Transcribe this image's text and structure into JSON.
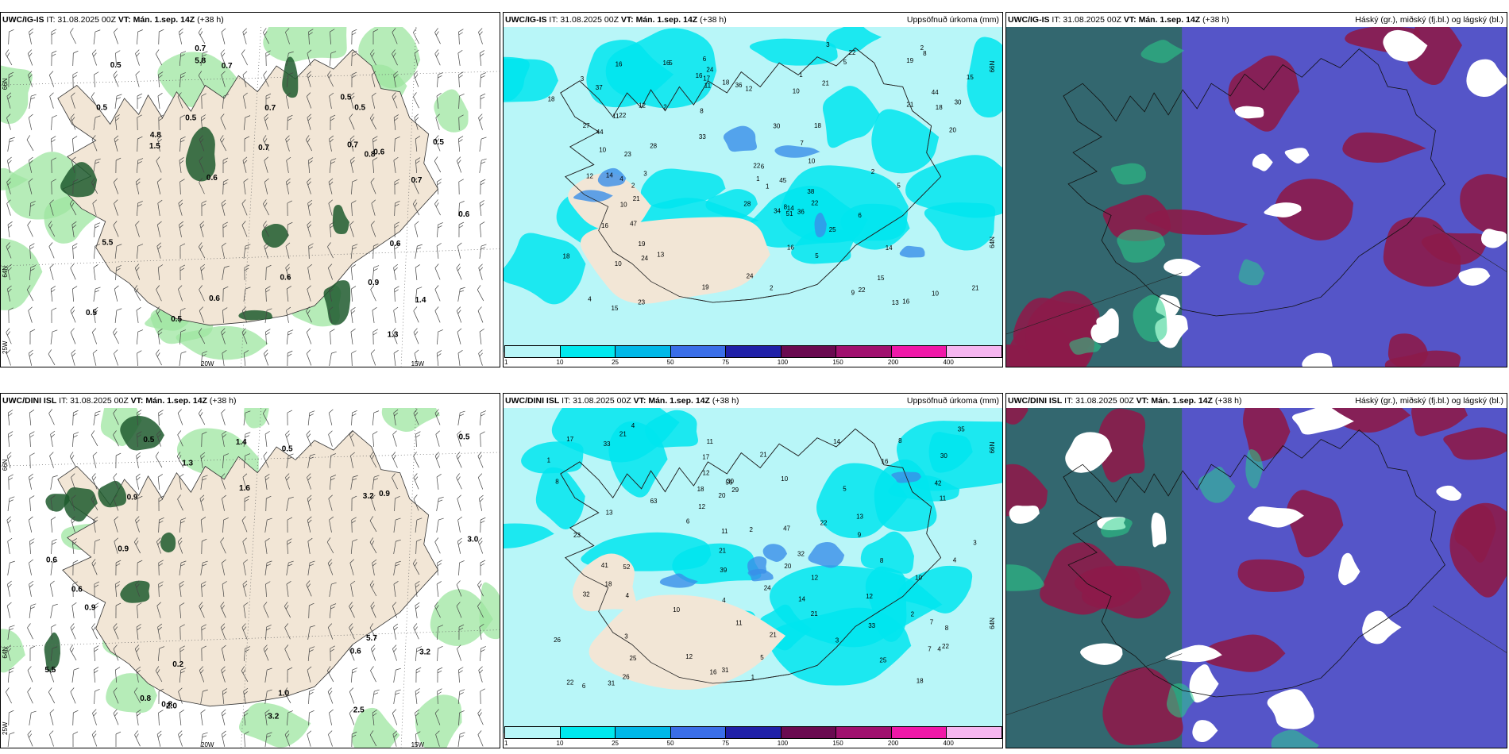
{
  "panels": [
    {
      "id": "wind-top",
      "model": "UWC/IG-IS",
      "run_prefix": "IT: 31.08.2025 00Z",
      "vt_label": "VT:",
      "vt": "Mán. 1.sep. 14Z",
      "lead": "(+38 h)",
      "right_title": "",
      "axis_labels": [
        "20W",
        "15W",
        "66N",
        "64N",
        "25W"
      ],
      "values": [
        "0.7",
        "0.7",
        "0.6",
        "0.5",
        "5.8",
        "4.8",
        "5.5",
        "0.7",
        "0.5",
        "0.5",
        "0.5",
        "0.6",
        "0.5",
        "0.6",
        "0.5",
        "0.7",
        "0.6",
        "0.8",
        "0.9",
        "0.5",
        "0.7",
        "0.5",
        "1.4",
        "1.3",
        "1.5",
        "0.6",
        "0.7",
        "0.6"
      ]
    },
    {
      "id": "precip-top",
      "model": "UWC/IG-IS",
      "run_prefix": "IT: 31.08.2025 00Z",
      "vt_label": "VT:",
      "vt": "Mán. 1.sep. 14Z",
      "lead": "(+38 h)",
      "right_title": "Uppsöfnuð úrkoma (mm)",
      "axis_labels": [
        "66N",
        "64N"
      ],
      "values": [
        "17",
        "6",
        "8",
        "10",
        "15",
        "14",
        "21",
        "30",
        "28",
        "33",
        "36",
        "44",
        "3",
        "23",
        "22",
        "34",
        "38",
        "51",
        "16",
        "15",
        "19",
        "27",
        "25",
        "10",
        "22",
        "37",
        "12",
        "18",
        "13",
        "16",
        "18",
        "16",
        "28",
        "11",
        "12",
        "8",
        "10",
        "16",
        "21",
        "10",
        "12",
        "15",
        "24",
        "19",
        "21",
        "44",
        "20",
        "22",
        "22",
        "45",
        "23",
        "10",
        "13",
        "18",
        "18",
        "24",
        "36",
        "16",
        "3",
        "6",
        "18",
        "30",
        "16",
        "47",
        "24",
        "2",
        "19",
        "21",
        "14",
        "22",
        "10",
        "2",
        "1",
        "2",
        "2",
        "8",
        "14",
        "1",
        "5",
        "9",
        "4",
        "5",
        "5",
        "6",
        "5",
        "1",
        "11",
        "4",
        "3",
        "2",
        "7"
      ],
      "legend": [
        "1",
        "10",
        "25",
        "50",
        "75",
        "100",
        "150",
        "200",
        "400"
      ]
    },
    {
      "id": "cloud-top",
      "model": "UWC/IG-IS",
      "run_prefix": "IT: 31.08.2025 00Z",
      "vt_label": "VT:",
      "vt": "Mán. 1.sep. 14Z",
      "lead": "(+38 h)",
      "right_title": "Háský (gr.), miðský (fj.bl.) og lágský (bl.)"
    },
    {
      "id": "wind-bottom",
      "model": "UWC/DINI ISL",
      "run_prefix": "IT: 31.08.2025 00Z",
      "vt_label": "VT:",
      "vt": "Mán. 1.sep. 14Z",
      "lead": "(+38 h)",
      "right_title": "",
      "axis_labels": [
        "20W",
        "15W",
        "66N",
        "64N",
        "25W"
      ],
      "values": [
        "0.5",
        "0.5",
        "3.2",
        "5.7",
        "5.5",
        "0.9",
        "3.0",
        "0.8",
        "0.6",
        "0.2",
        "3.2",
        "0.6",
        "0.9",
        "1.4",
        "1.6",
        "0.6",
        "3.2",
        "2.5",
        "0.5",
        "2.0",
        "0.9",
        "0.8",
        "1.3",
        "0.9",
        "1.0"
      ],
      "legend": []
    },
    {
      "id": "precip-bottom",
      "model": "UWC/DINI ISL",
      "run_prefix": "IT: 31.08.2025 00Z",
      "vt_label": "VT:",
      "vt": "Mán. 1.sep. 14Z",
      "lead": "(+38 h)",
      "right_title": "Uppsöfnuð úrkoma (mm)",
      "axis_labels": [
        "66N",
        "64N"
      ],
      "values": [
        "12",
        "18",
        "18",
        "39",
        "42",
        "11",
        "11",
        "4",
        "26",
        "33",
        "56",
        "16",
        "12",
        "21",
        "10",
        "25",
        "23",
        "31",
        "41",
        "12",
        "14",
        "21",
        "30",
        "35",
        "22",
        "47",
        "33",
        "9",
        "10",
        "17",
        "26",
        "8",
        "4",
        "21",
        "31",
        "32",
        "20",
        "16",
        "8",
        "4",
        "21",
        "22",
        "7",
        "22",
        "25",
        "17",
        "21",
        "29",
        "14",
        "11",
        "13",
        "12",
        "20",
        "32",
        "63",
        "52",
        "24",
        "18",
        "30",
        "13",
        "11",
        "12",
        "6",
        "8",
        "4",
        "3",
        "5",
        "1",
        "6",
        "4",
        "3",
        "2",
        "8",
        "5",
        "10",
        "7",
        "1",
        "2",
        "3"
      ],
      "legend": [
        "1",
        "10",
        "25",
        "50",
        "75",
        "100",
        "150",
        "200",
        "400"
      ]
    },
    {
      "id": "cloud-bottom",
      "model": "UWC/DINI ISL",
      "run_prefix": "IT: 31.08.2025 00Z",
      "vt_label": "VT:",
      "vt": "Mán. 1.sep. 14Z",
      "lead": "(+38 h)",
      "right_title": "Háský (gr.), miðský (fj.bl.) og lágský (bl.)"
    }
  ],
  "colors": {
    "land": "#f2e6d6",
    "sea_precip": "#b8f6f8",
    "cyan": "#00e5ee",
    "cloud_high": "#2e6b5f",
    "cloud_mid": "#8c1b4a",
    "cloud_low": "#5555c8",
    "green_dark": "#1e5b2e",
    "green_light": "#9ee6a0"
  },
  "legend_colors": [
    "#b8f6f8",
    "#00e8ee",
    "#00b8e8",
    "#3a6ee8",
    "#2020a8",
    "#6a0a50",
    "#a0106e",
    "#f018a8",
    "#f6b6f0"
  ]
}
